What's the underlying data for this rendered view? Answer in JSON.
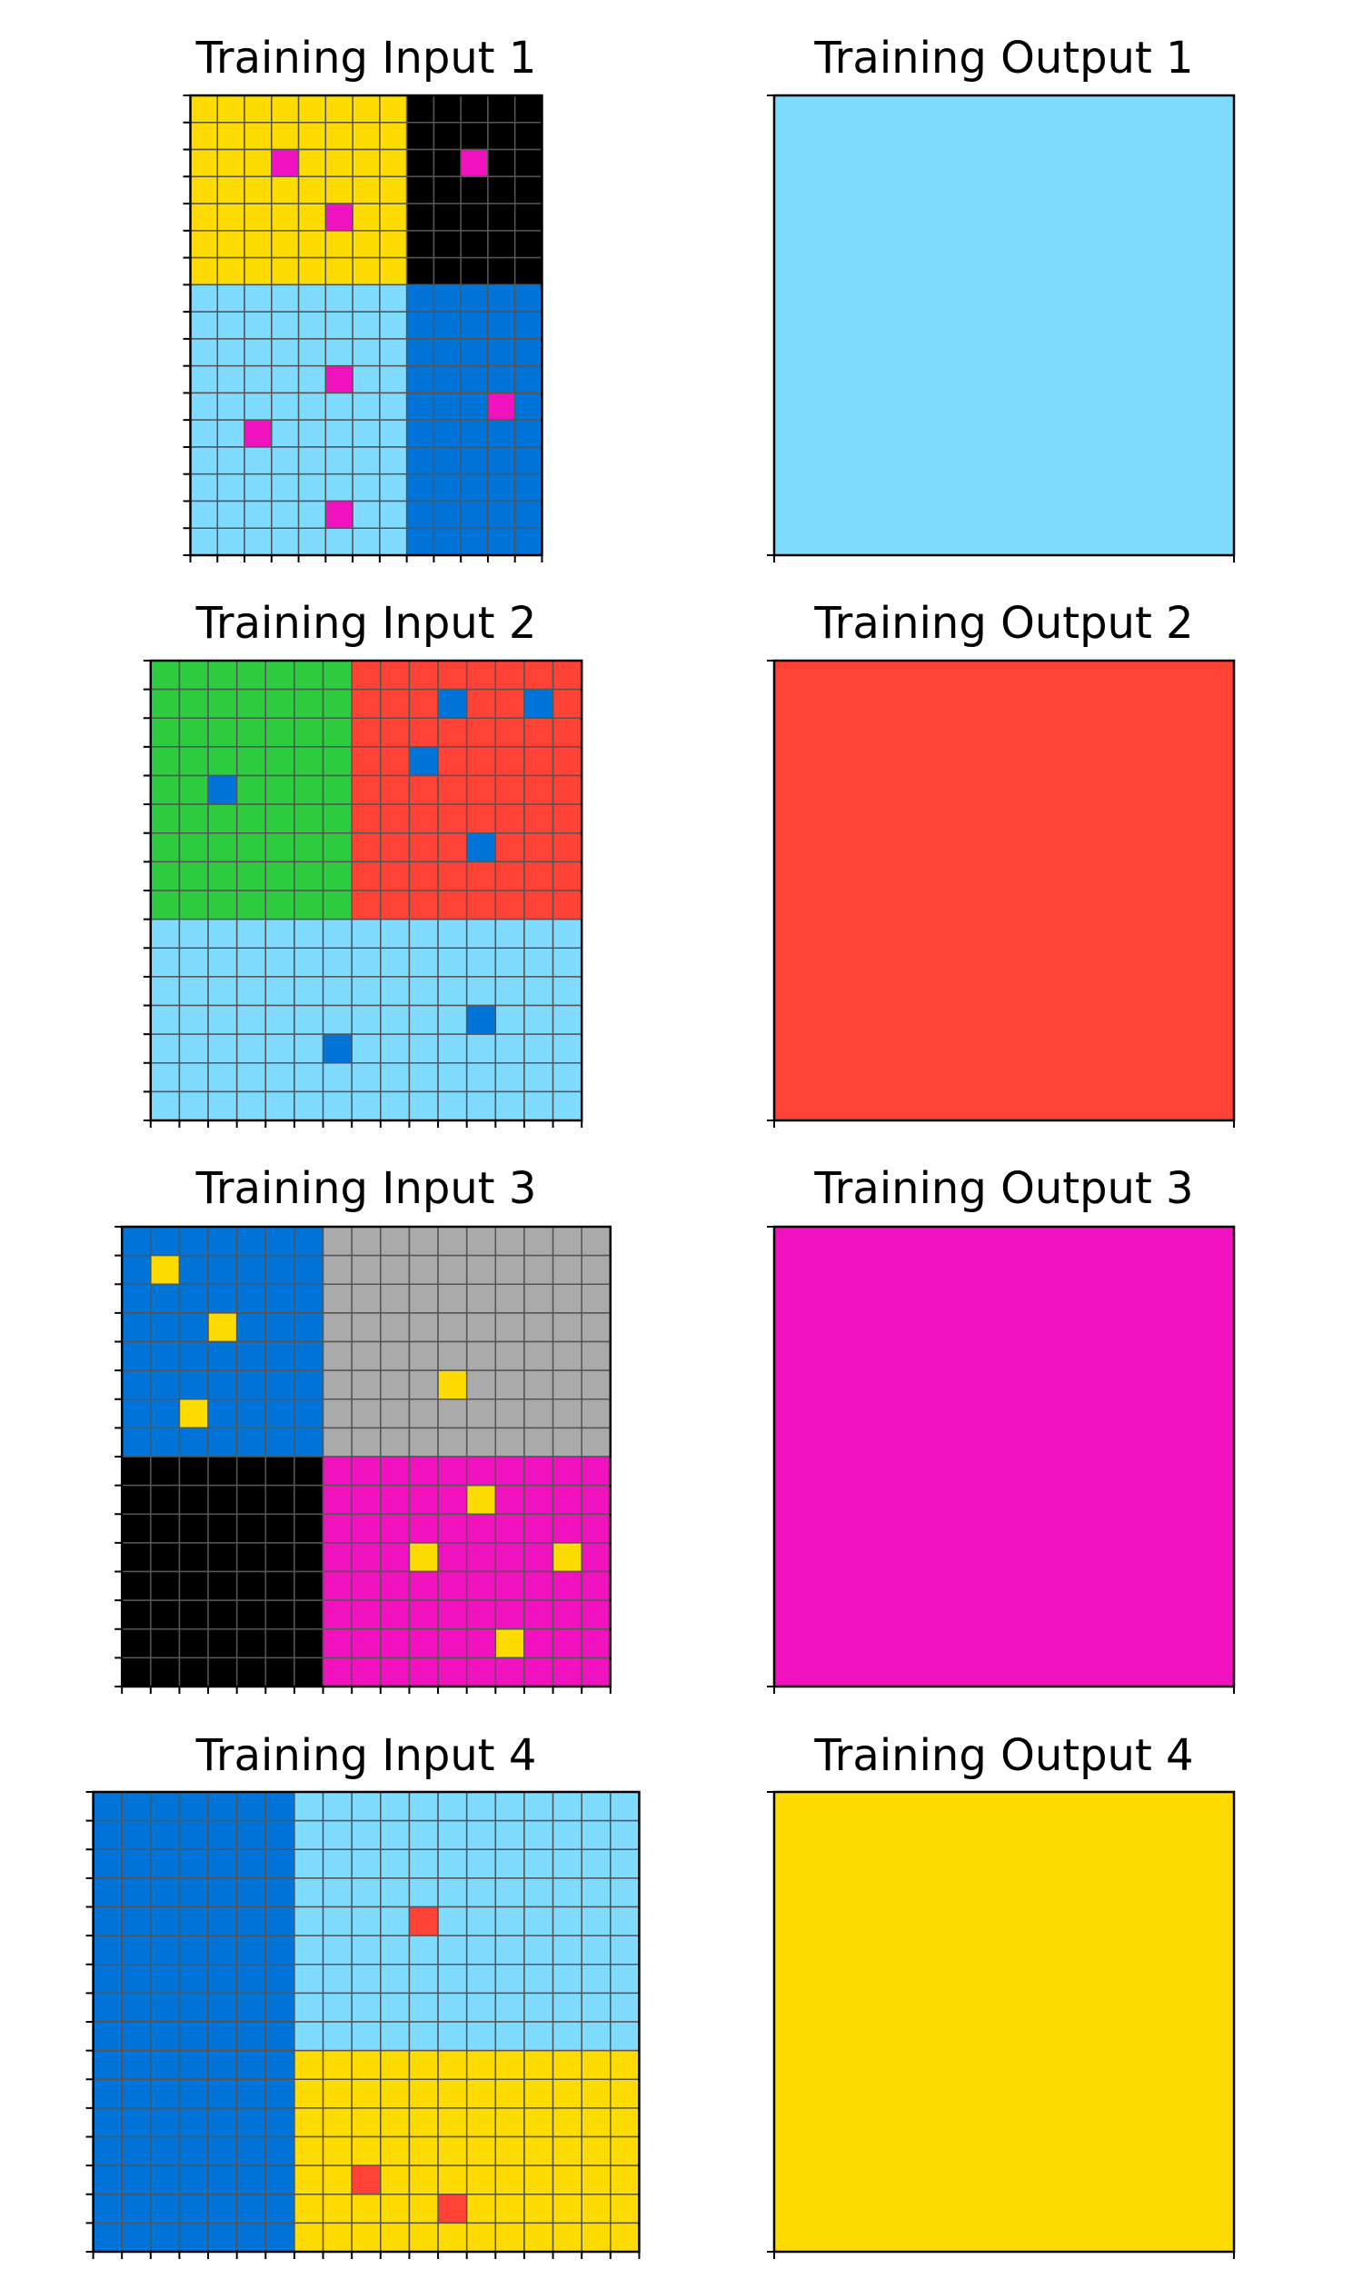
{
  "palette": {
    "0": "#000000",
    "1": "#0074D9",
    "2": "#FF4136",
    "3": "#2ECC40",
    "4": "#FFDC00",
    "5": "#AAAAAA",
    "6": "#F012BE",
    "7": "#FF851B",
    "8": "#7FDBFF",
    "9": "#870C25"
  },
  "grid_line_color": "#555555",
  "pairs": [
    {
      "input_title": "Training Input 1",
      "output_title": "Training Output 1",
      "input": {
        "rows": 17,
        "cols": 13,
        "regions": [
          {
            "r0": 0,
            "r1": 6,
            "c0": 0,
            "c1": 7,
            "color": 4
          },
          {
            "r0": 0,
            "r1": 6,
            "c0": 8,
            "c1": 12,
            "color": 0
          },
          {
            "r0": 7,
            "r1": 16,
            "c0": 0,
            "c1": 7,
            "color": 8
          },
          {
            "r0": 7,
            "r1": 16,
            "c0": 8,
            "c1": 12,
            "color": 1
          }
        ],
        "specks": [
          {
            "r": 2,
            "c": 3,
            "color": 6
          },
          {
            "r": 4,
            "c": 5,
            "color": 6
          },
          {
            "r": 2,
            "c": 10,
            "color": 6
          },
          {
            "r": 10,
            "c": 5,
            "color": 6
          },
          {
            "r": 11,
            "c": 11,
            "color": 6
          },
          {
            "r": 12,
            "c": 2,
            "color": 6
          },
          {
            "r": 15,
            "c": 5,
            "color": 6
          }
        ]
      },
      "output": {
        "rows": 1,
        "cols": 1,
        "color": 8
      }
    },
    {
      "input_title": "Training Input 2",
      "output_title": "Training Output 2",
      "input": {
        "rows": 16,
        "cols": 15,
        "regions": [
          {
            "r0": 0,
            "r1": 8,
            "c0": 0,
            "c1": 6,
            "color": 3
          },
          {
            "r0": 0,
            "r1": 8,
            "c0": 7,
            "c1": 14,
            "color": 2
          },
          {
            "r0": 9,
            "r1": 15,
            "c0": 0,
            "c1": 14,
            "color": 8
          }
        ],
        "specks": [
          {
            "r": 1,
            "c": 10,
            "color": 1
          },
          {
            "r": 1,
            "c": 13,
            "color": 1
          },
          {
            "r": 3,
            "c": 9,
            "color": 1
          },
          {
            "r": 4,
            "c": 2,
            "color": 1
          },
          {
            "r": 6,
            "c": 11,
            "color": 1
          },
          {
            "r": 12,
            "c": 11,
            "color": 1
          },
          {
            "r": 13,
            "c": 6,
            "color": 1
          }
        ]
      },
      "output": {
        "rows": 1,
        "cols": 1,
        "color": 2
      }
    },
    {
      "input_title": "Training Input 3",
      "output_title": "Training Output 3",
      "input": {
        "rows": 16,
        "cols": 17,
        "regions": [
          {
            "r0": 0,
            "r1": 7,
            "c0": 0,
            "c1": 6,
            "color": 1
          },
          {
            "r0": 0,
            "r1": 7,
            "c0": 7,
            "c1": 16,
            "color": 5
          },
          {
            "r0": 8,
            "r1": 15,
            "c0": 0,
            "c1": 6,
            "color": 0
          },
          {
            "r0": 8,
            "r1": 15,
            "c0": 7,
            "c1": 16,
            "color": 6
          }
        ],
        "specks": [
          {
            "r": 1,
            "c": 1,
            "color": 4
          },
          {
            "r": 3,
            "c": 3,
            "color": 4
          },
          {
            "r": 5,
            "c": 11,
            "color": 4
          },
          {
            "r": 6,
            "c": 2,
            "color": 4
          },
          {
            "r": 9,
            "c": 12,
            "color": 4
          },
          {
            "r": 11,
            "c": 10,
            "color": 4
          },
          {
            "r": 11,
            "c": 15,
            "color": 4
          },
          {
            "r": 14,
            "c": 13,
            "color": 4
          }
        ]
      },
      "output": {
        "rows": 1,
        "cols": 1,
        "color": 6
      }
    },
    {
      "input_title": "Training Input 4",
      "output_title": "Training Output 4",
      "input": {
        "rows": 16,
        "cols": 19,
        "regions": [
          {
            "r0": 0,
            "r1": 15,
            "c0": 0,
            "c1": 6,
            "color": 1
          },
          {
            "r0": 0,
            "r1": 8,
            "c0": 7,
            "c1": 18,
            "color": 8
          },
          {
            "r0": 9,
            "r1": 15,
            "c0": 7,
            "c1": 18,
            "color": 4
          }
        ],
        "specks": [
          {
            "r": 4,
            "c": 11,
            "color": 2
          },
          {
            "r": 13,
            "c": 9,
            "color": 2
          },
          {
            "r": 14,
            "c": 12,
            "color": 2
          }
        ]
      },
      "output": {
        "rows": 1,
        "cols": 1,
        "color": 4
      }
    }
  ]
}
